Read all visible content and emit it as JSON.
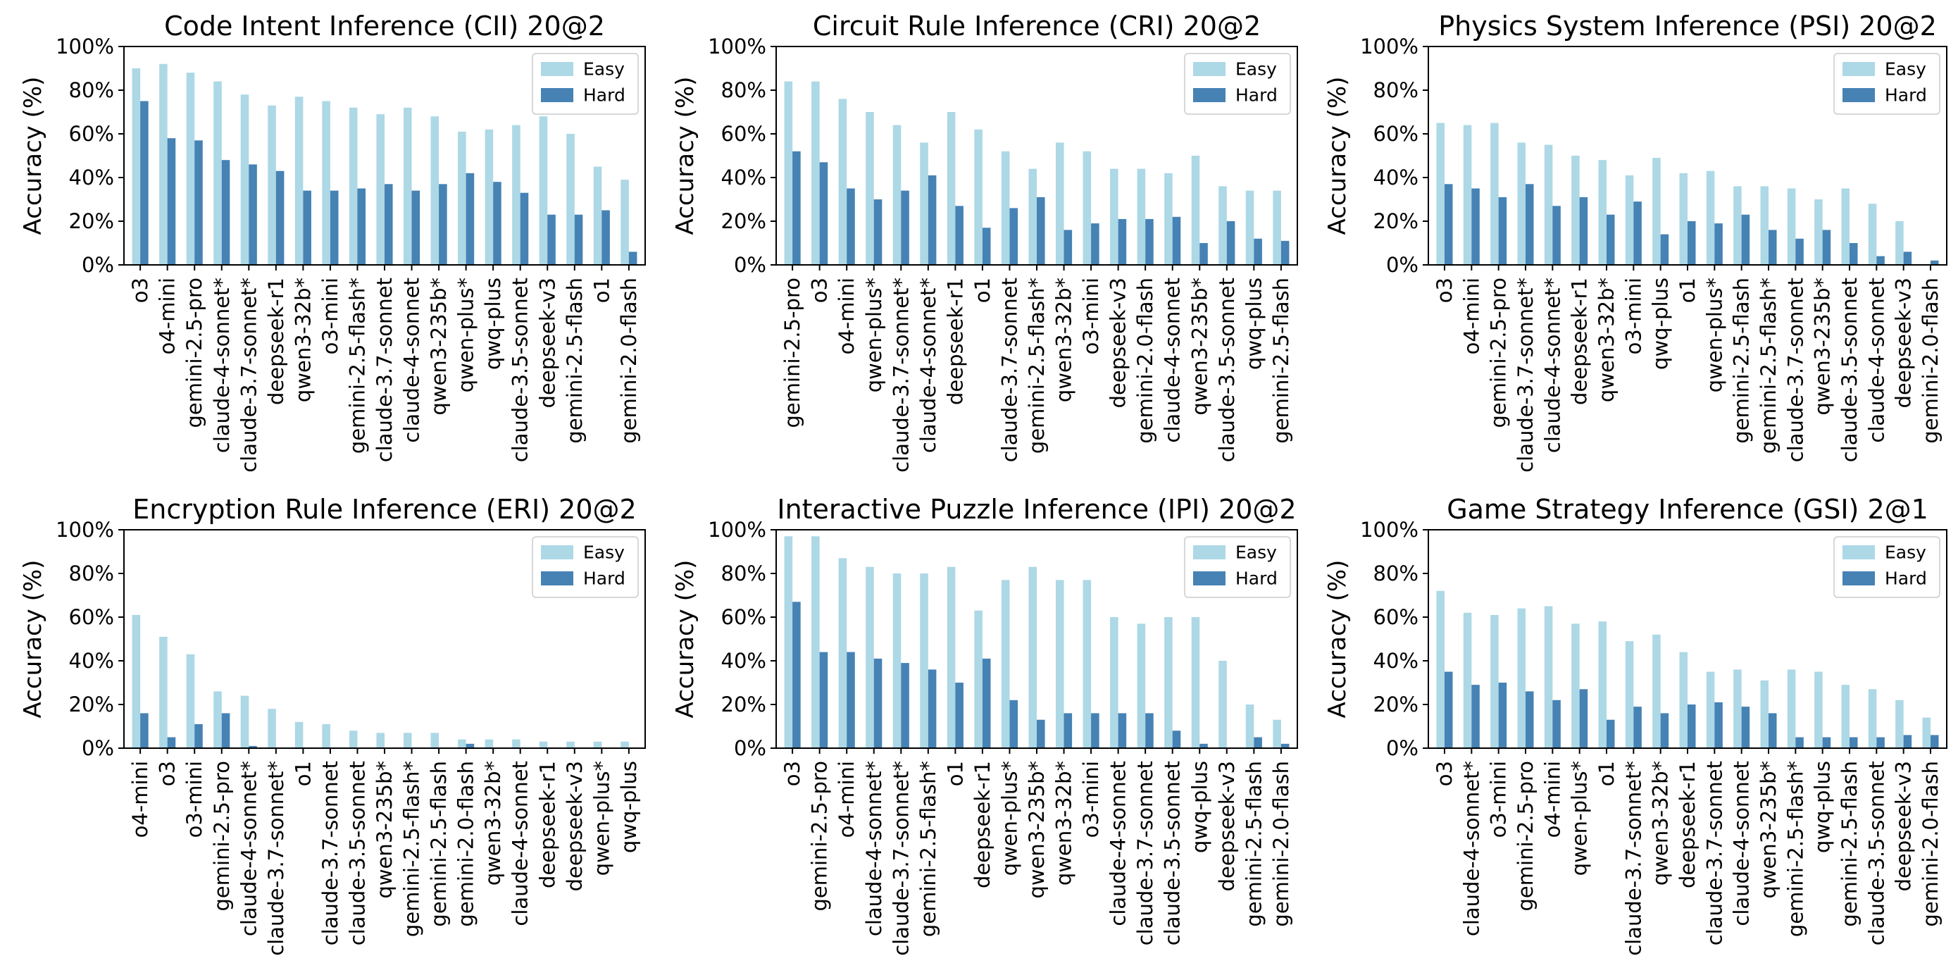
{
  "colors": {
    "easy": "#add8e6",
    "hard": "#4682b4",
    "axis": "#000000"
  },
  "chart_data": [
    {
      "type": "bar",
      "title": "Code Intent Inference (CII) 20@2",
      "ylabel": "Accuracy (%)",
      "ylim": [
        0,
        100
      ],
      "yticks": [
        "0%",
        "20%",
        "40%",
        "60%",
        "80%",
        "100%"
      ],
      "legend": "top-right",
      "categories": [
        "o3",
        "o4-mini",
        "gemini-2.5-pro",
        "claude-4-sonnet*",
        "claude-3.7-sonnet*",
        "deepseek-r1",
        "qwen3-32b*",
        "o3-mini",
        "gemini-2.5-flash*",
        "claude-3.7-sonnet",
        "claude-4-sonnet",
        "qwen3-235b*",
        "qwen-plus*",
        "qwq-plus",
        "claude-3.5-sonnet",
        "deepseek-v3",
        "gemini-2.5-flash",
        "o1",
        "gemini-2.0-flash"
      ],
      "series": [
        {
          "name": "Easy",
          "values": [
            90,
            92,
            88,
            84,
            78,
            73,
            77,
            75,
            72,
            69,
            72,
            68,
            61,
            62,
            64,
            68,
            60,
            45,
            39
          ]
        },
        {
          "name": "Hard",
          "values": [
            75,
            58,
            57,
            48,
            46,
            43,
            34,
            34,
            35,
            37,
            34,
            37,
            42,
            38,
            33,
            23,
            23,
            25,
            6
          ]
        }
      ]
    },
    {
      "type": "bar",
      "title": "Circuit Rule Inference (CRI) 20@2",
      "ylabel": "Accuracy (%)",
      "ylim": [
        0,
        100
      ],
      "yticks": [
        "0%",
        "20%",
        "40%",
        "60%",
        "80%",
        "100%"
      ],
      "legend": "top-right",
      "categories": [
        "gemini-2.5-pro",
        "o3",
        "o4-mini",
        "qwen-plus*",
        "claude-3.7-sonnet*",
        "claude-4-sonnet*",
        "deepseek-r1",
        "o1",
        "claude-3.7-sonnet",
        "gemini-2.5-flash*",
        "qwen3-32b*",
        "o3-mini",
        "deepseek-v3",
        "gemini-2.0-flash",
        "claude-4-sonnet",
        "qwen3-235b*",
        "claude-3.5-sonnet",
        "qwq-plus",
        "gemini-2.5-flash"
      ],
      "series": [
        {
          "name": "Easy",
          "values": [
            84,
            84,
            76,
            70,
            64,
            56,
            70,
            62,
            52,
            44,
            56,
            52,
            44,
            44,
            42,
            50,
            36,
            34,
            34
          ]
        },
        {
          "name": "Hard",
          "values": [
            52,
            47,
            35,
            30,
            34,
            41,
            27,
            17,
            26,
            31,
            16,
            19,
            21,
            21,
            22,
            10,
            20,
            12,
            11
          ]
        }
      ]
    },
    {
      "type": "bar",
      "title": "Physics System Inference (PSI) 20@2",
      "ylabel": "Accuracy (%)",
      "ylim": [
        0,
        100
      ],
      "yticks": [
        "0%",
        "20%",
        "40%",
        "60%",
        "80%",
        "100%"
      ],
      "legend": "top-right",
      "categories": [
        "o3",
        "o4-mini",
        "gemini-2.5-pro",
        "claude-3.7-sonnet*",
        "claude-4-sonnet*",
        "deepseek-r1",
        "qwen3-32b*",
        "o3-mini",
        "qwq-plus",
        "o1",
        "qwen-plus*",
        "gemini-2.5-flash",
        "gemini-2.5-flash*",
        "claude-3.7-sonnet",
        "qwen3-235b*",
        "claude-3.5-sonnet",
        "claude-4-sonnet",
        "deepseek-v3",
        "gemini-2.0-flash"
      ],
      "series": [
        {
          "name": "Easy",
          "values": [
            65,
            64,
            65,
            56,
            55,
            50,
            48,
            41,
            49,
            42,
            43,
            36,
            36,
            35,
            30,
            35,
            28,
            20,
            0
          ]
        },
        {
          "name": "Hard",
          "values": [
            37,
            35,
            31,
            37,
            27,
            31,
            23,
            29,
            14,
            20,
            19,
            23,
            16,
            12,
            16,
            10,
            4,
            6,
            2
          ]
        }
      ]
    },
    {
      "type": "bar",
      "title": "Encryption Rule Inference (ERI) 20@2",
      "ylabel": "Accuracy (%)",
      "ylim": [
        0,
        100
      ],
      "yticks": [
        "0%",
        "20%",
        "40%",
        "60%",
        "80%",
        "100%"
      ],
      "legend": "top-right",
      "categories": [
        "o4-mini",
        "o3",
        "o3-mini",
        "gemini-2.5-pro",
        "claude-4-sonnet*",
        "claude-3.7-sonnet*",
        "o1",
        "claude-3.7-sonnet",
        "claude-3.5-sonnet",
        "qwen3-235b*",
        "gemini-2.5-flash*",
        "gemini-2.5-flash",
        "gemini-2.0-flash",
        "qwen3-32b*",
        "claude-4-sonnet",
        "deepseek-r1",
        "deepseek-v3",
        "qwen-plus*",
        "qwq-plus"
      ],
      "series": [
        {
          "name": "Easy",
          "values": [
            61,
            51,
            43,
            26,
            24,
            18,
            12,
            11,
            8,
            7,
            7,
            7,
            4,
            4,
            4,
            3,
            3,
            3,
            3
          ]
        },
        {
          "name": "Hard",
          "values": [
            16,
            5,
            11,
            16,
            1,
            0,
            0,
            0,
            0,
            0,
            0,
            0,
            2,
            0,
            0,
            0,
            0,
            0,
            0
          ]
        }
      ]
    },
    {
      "type": "bar",
      "title": "Interactive Puzzle Inference (IPI) 20@2",
      "ylabel": "Accuracy (%)",
      "ylim": [
        0,
        100
      ],
      "yticks": [
        "0%",
        "20%",
        "40%",
        "60%",
        "80%",
        "100%"
      ],
      "legend": "top-right",
      "categories": [
        "o3",
        "gemini-2.5-pro",
        "o4-mini",
        "claude-4-sonnet*",
        "claude-3.7-sonnet*",
        "gemini-2.5-flash*",
        "o1",
        "deepseek-r1",
        "qwen-plus*",
        "qwen3-235b*",
        "qwen3-32b*",
        "o3-mini",
        "claude-4-sonnet",
        "claude-3.7-sonnet",
        "claude-3.5-sonnet",
        "qwq-plus",
        "deepseek-v3",
        "gemini-2.5-flash",
        "gemini-2.0-flash"
      ],
      "series": [
        {
          "name": "Easy",
          "values": [
            97,
            97,
            87,
            83,
            80,
            80,
            83,
            63,
            77,
            83,
            77,
            77,
            60,
            57,
            60,
            60,
            40,
            20,
            13
          ]
        },
        {
          "name": "Hard",
          "values": [
            67,
            44,
            44,
            41,
            39,
            36,
            30,
            41,
            22,
            13,
            16,
            16,
            16,
            16,
            8,
            2,
            0,
            5,
            2
          ]
        }
      ]
    },
    {
      "type": "bar",
      "title": "Game Strategy Inference (GSI) 2@1",
      "ylabel": "Accuracy (%)",
      "ylim": [
        0,
        100
      ],
      "yticks": [
        "0%",
        "20%",
        "40%",
        "60%",
        "80%",
        "100%"
      ],
      "legend": "top-right",
      "categories": [
        "o3",
        "claude-4-sonnet*",
        "o3-mini",
        "gemini-2.5-pro",
        "o4-mini",
        "qwen-plus*",
        "o1",
        "claude-3.7-sonnet*",
        "qwen3-32b*",
        "deepseek-r1",
        "claude-3.7-sonnet",
        "claude-4-sonnet",
        "qwen3-235b*",
        "gemini-2.5-flash*",
        "qwq-plus",
        "gemini-2.5-flash",
        "claude-3.5-sonnet",
        "deepseek-v3",
        "gemini-2.0-flash"
      ],
      "series": [
        {
          "name": "Easy",
          "values": [
            72,
            62,
            61,
            64,
            65,
            57,
            58,
            49,
            52,
            44,
            35,
            36,
            31,
            36,
            35,
            29,
            27,
            22,
            14
          ]
        },
        {
          "name": "Hard",
          "values": [
            35,
            29,
            30,
            26,
            22,
            27,
            13,
            19,
            16,
            20,
            21,
            19,
            16,
            5,
            5,
            5,
            5,
            6,
            6
          ]
        }
      ]
    }
  ]
}
